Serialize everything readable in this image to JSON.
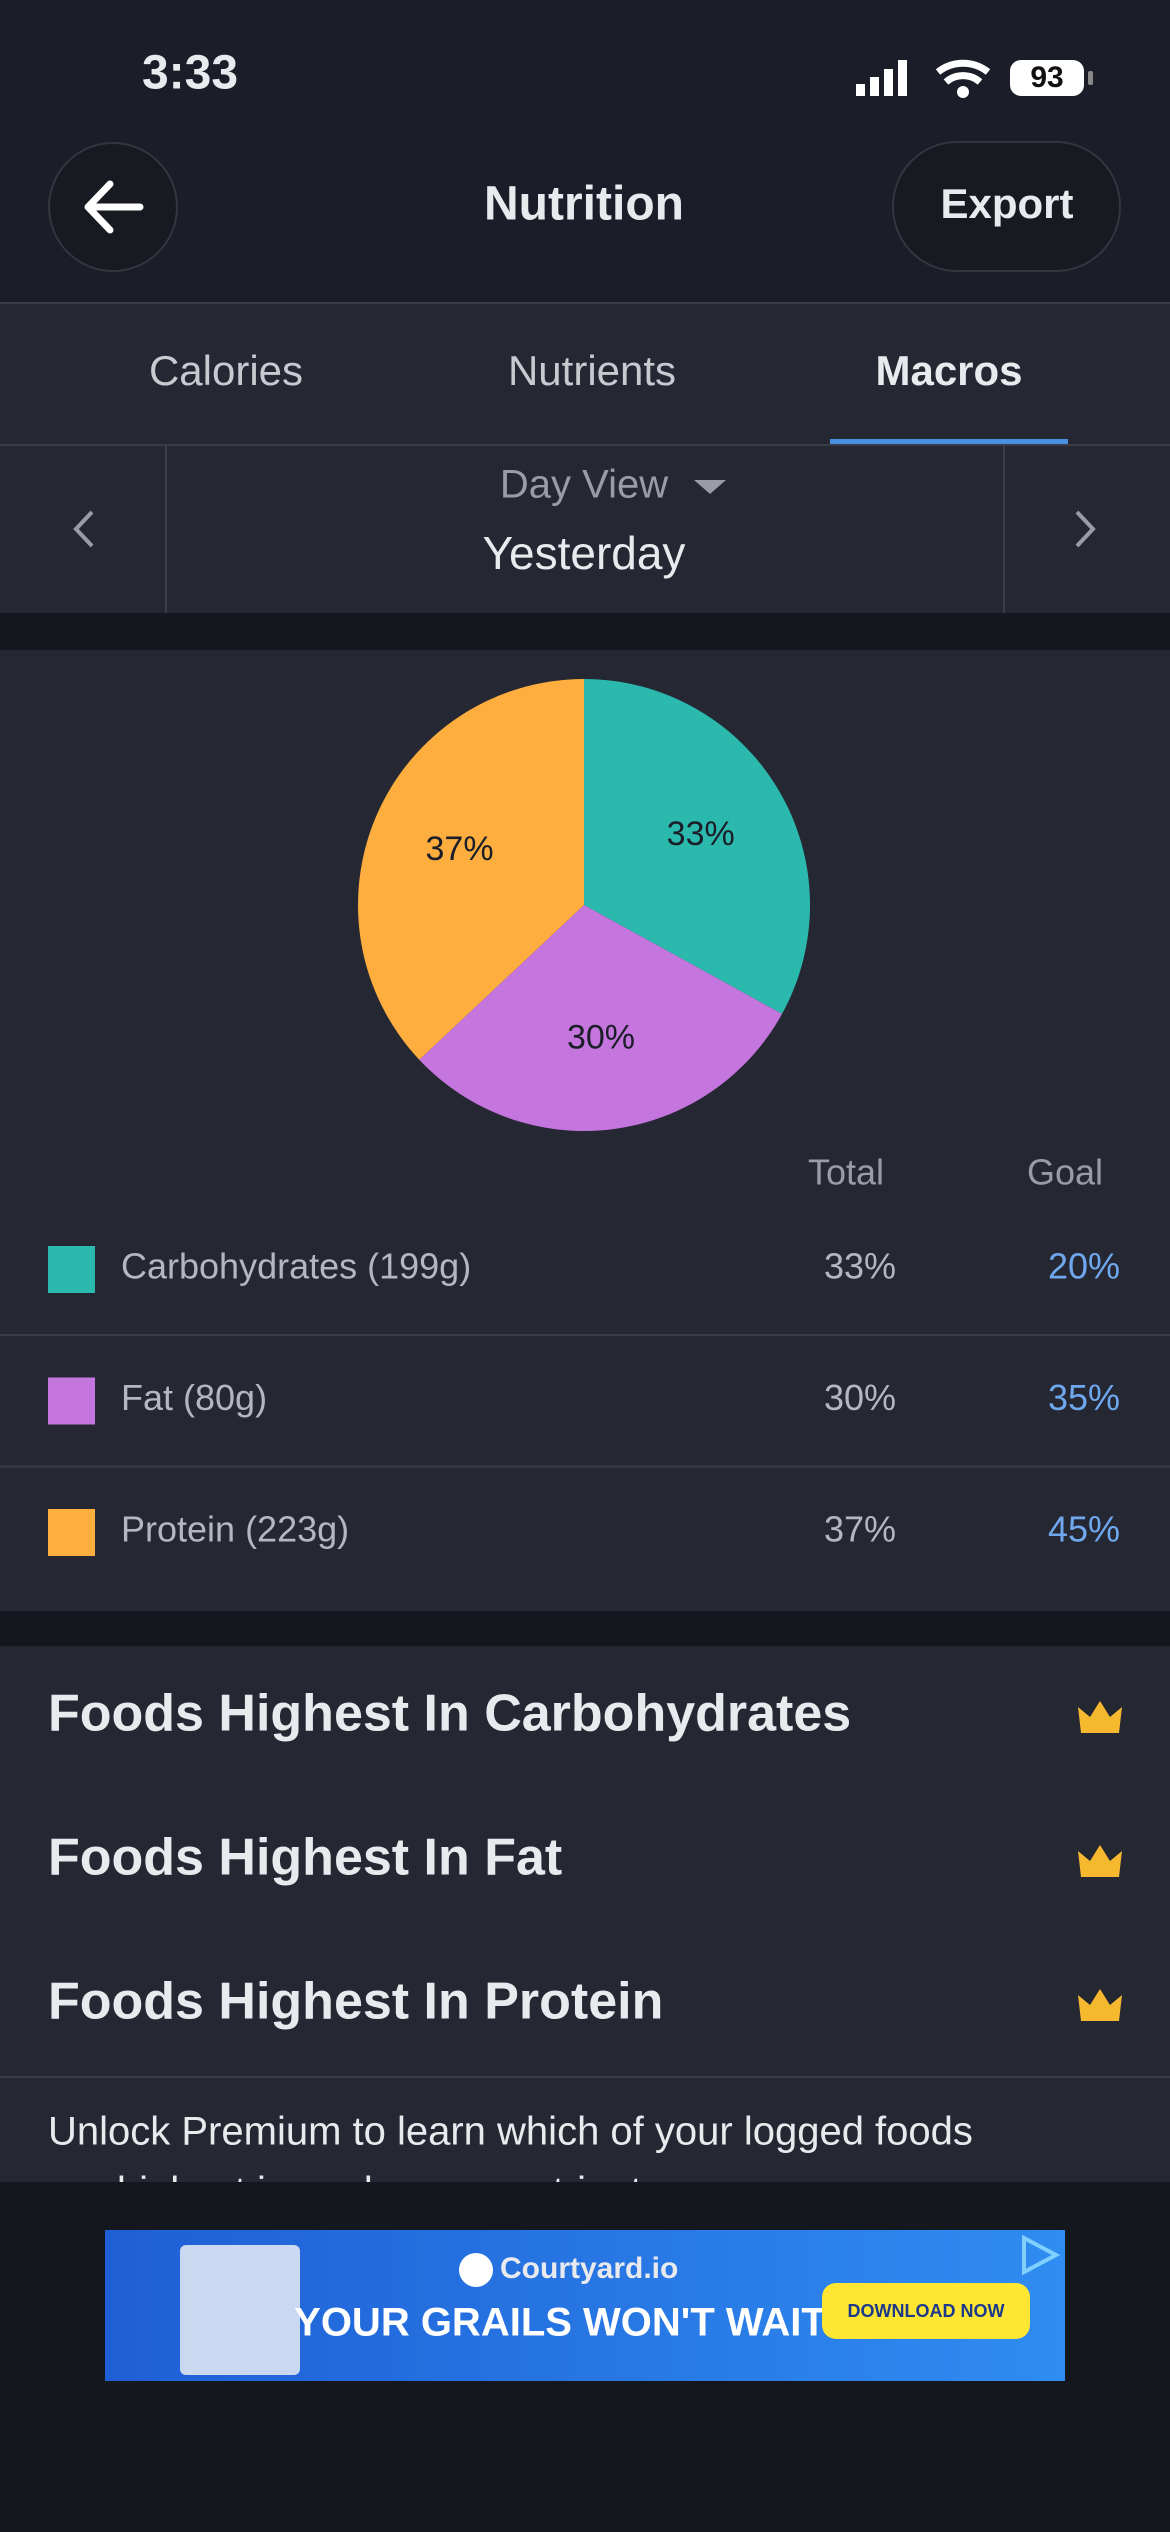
{
  "status_bar": {
    "time": "3:33",
    "battery": "93"
  },
  "header": {
    "title": "Nutrition",
    "export": "Export"
  },
  "tabs": [
    "Calories",
    "Nutrients",
    "Macros"
  ],
  "date_nav": {
    "view": "Day View",
    "date": "Yesterday"
  },
  "chart_data": {
    "type": "pie",
    "categories": [
      "Carbohydrates (199g)",
      "Fat (80g)",
      "Protein (223g)"
    ],
    "values": [
      33,
      30,
      37
    ],
    "value_labels": [
      "33%",
      "30%",
      "37%"
    ],
    "colors": [
      "#2bb8ad",
      "#c576de",
      "#fdae3e"
    ]
  },
  "table": {
    "headers": [
      "Total",
      "Goal"
    ],
    "goals": [
      "20%",
      "35%",
      "45%"
    ]
  },
  "sections": [
    "Foods Highest In Carbohydrates",
    "Foods Highest In Fat",
    "Foods Highest In Protein"
  ],
  "premium_text": [
    "Unlock Premium to learn which of your logged foods",
    "are highest in each macronutrient."
  ],
  "ad": {
    "brand": "Courtyard.io",
    "headline": "YOUR GRAILS WON'T WAIT",
    "cta": "DOWNLOAD NOW"
  }
}
